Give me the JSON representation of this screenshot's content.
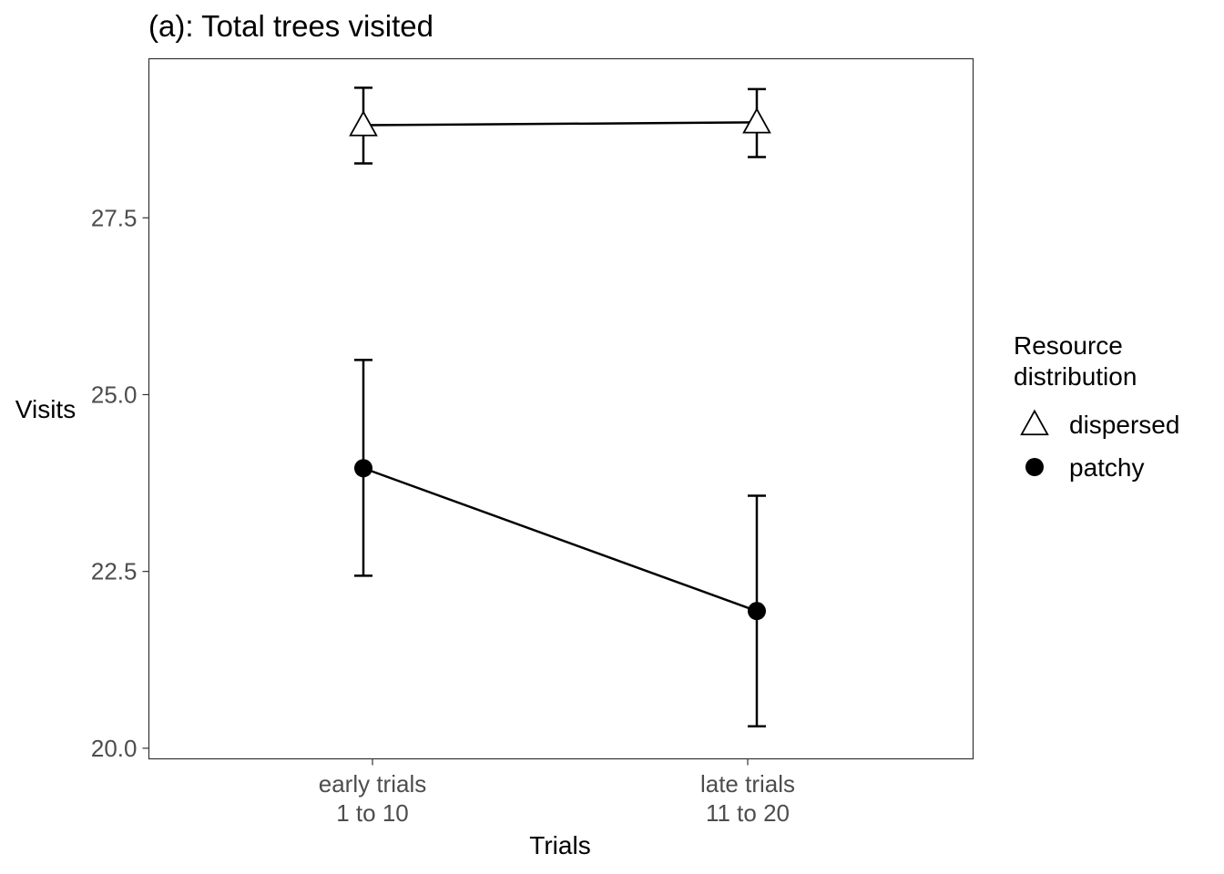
{
  "chart_data": {
    "type": "line",
    "title": "(a): Total trees visited",
    "xlabel": "Trials",
    "ylabel": "Visits",
    "categories": [
      [
        "early trials",
        "1 to 10"
      ],
      [
        "late trials",
        "11 to 20"
      ]
    ],
    "y_ticks": [
      "20.0",
      "22.5",
      "25.0",
      "27.5"
    ],
    "y_tick_values": [
      20.0,
      22.5,
      25.0,
      27.5
    ],
    "ylim": [
      19.85,
      29.75
    ],
    "grid": false,
    "legend": {
      "title": [
        "Resource",
        "distribution"
      ],
      "placement": "right"
    },
    "series": [
      {
        "name": "dispersed",
        "marker": "open-triangle",
        "values": [
          28.81,
          28.85
        ],
        "lower": [
          28.27,
          28.36
        ],
        "upper": [
          29.34,
          29.32
        ]
      },
      {
        "name": "patchy",
        "marker": "filled-circle",
        "values": [
          23.96,
          21.94
        ],
        "lower": [
          22.44,
          20.31
        ],
        "upper": [
          25.49,
          23.57
        ]
      }
    ]
  }
}
